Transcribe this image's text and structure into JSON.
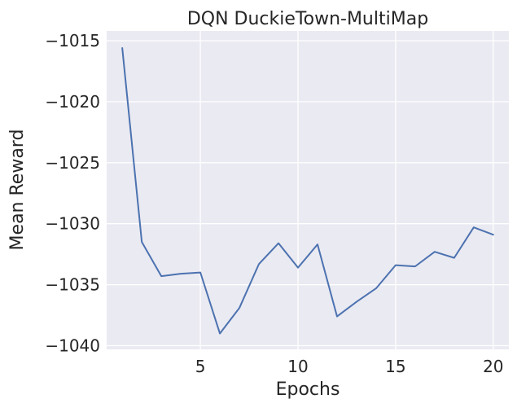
{
  "chart_data": {
    "type": "line",
    "title": "DQN DuckieTown-MultiMap",
    "xlabel": "Epochs",
    "ylabel": "Mean Reward",
    "xlim": [
      0.2,
      20.8
    ],
    "ylim": [
      -1040.3,
      -1014.2
    ],
    "xticks": [
      5,
      10,
      15,
      20
    ],
    "yticks": [
      -1040,
      -1035,
      -1030,
      -1025,
      -1020,
      -1015
    ],
    "xtick_labels": [
      "5",
      "10",
      "15",
      "20"
    ],
    "ytick_labels": [
      "−1040",
      "−1035",
      "−1030",
      "−1025",
      "−1020",
      "−1015"
    ],
    "grid": true,
    "colors": {
      "background": "#eaeaf2",
      "grid": "#ffffff",
      "line": "#4c72b0"
    },
    "series": [
      {
        "x": [
          1,
          2,
          3,
          4,
          5,
          6,
          7,
          8,
          9,
          10,
          11,
          12,
          13,
          14,
          15,
          16,
          17,
          18,
          19,
          20
        ],
        "y": [
          -1015.6,
          -1031.5,
          -1034.3,
          -1034.1,
          -1034.0,
          -1039.0,
          -1036.9,
          -1033.3,
          -1031.6,
          -1033.6,
          -1031.7,
          -1037.6,
          -1036.4,
          -1035.3,
          -1033.4,
          -1033.5,
          -1032.3,
          -1032.8,
          -1030.3,
          -1030.9
        ]
      }
    ]
  }
}
